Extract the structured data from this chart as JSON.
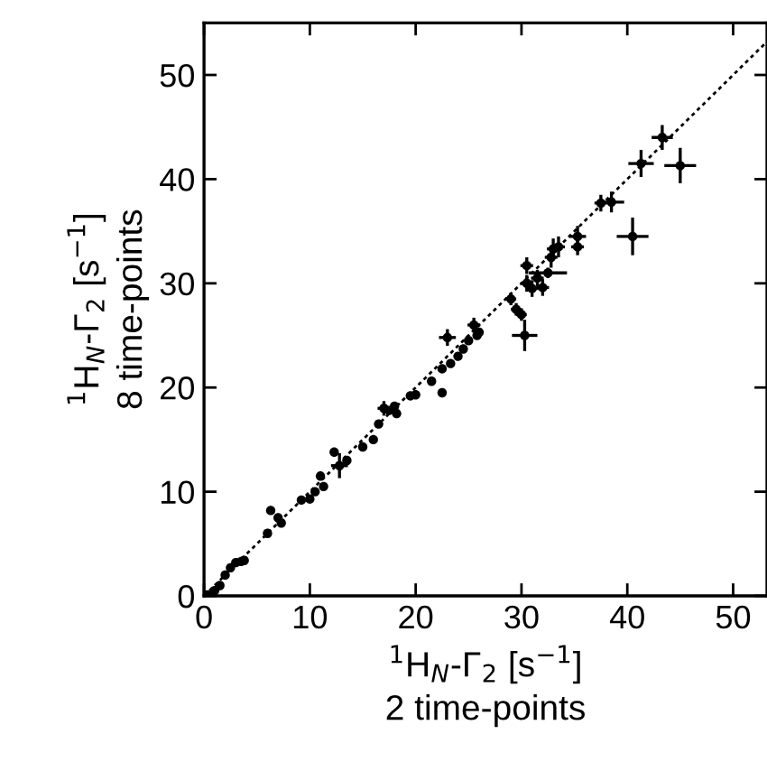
{
  "chart_data": {
    "type": "scatter",
    "xlabel": "$^{1}$H$_{N}$-Γ$_{2}$ [s$^{−1}$]\n2 time-points",
    "ylabel": "$^{1}$H$_{N}$-Γ$_{2}$ [s$^{−1}$]\n8 time-points",
    "xlim": [
      0,
      53.2
    ],
    "ylim": [
      0,
      55
    ],
    "xticks": [
      0,
      10,
      20,
      30,
      40,
      50
    ],
    "yticks": [
      0,
      10,
      20,
      30,
      40,
      50
    ],
    "grid": false,
    "legend": false,
    "series": [
      {
        "color": "#000000",
        "marker": "circle",
        "x": [
          0.3,
          1,
          1.5,
          2,
          2.5,
          3,
          3.5,
          3.8,
          6,
          6.3,
          7,
          7.3,
          9.2,
          10,
          10.5,
          11,
          11.3,
          12.3,
          12.8,
          13.5,
          15,
          16,
          16.5,
          17,
          17.5,
          18,
          18.2,
          19.5,
          20,
          21.5,
          22.5,
          22.5,
          23,
          23.3,
          24,
          24.5,
          25,
          25.5,
          25.8,
          26,
          29,
          29.5,
          30,
          30.3,
          30.5,
          30.5,
          31,
          31.5,
          32,
          32.5,
          32.8,
          33,
          33.5,
          35.3,
          35.3,
          37.5,
          38.5,
          40.5,
          41.3,
          43.3,
          45
        ],
        "values": [
          0.1,
          0.5,
          1,
          2,
          2.7,
          3.2,
          3.3,
          3.4,
          6,
          8.2,
          7.5,
          7,
          9.2,
          9.3,
          10,
          11.5,
          10.5,
          13.8,
          12.5,
          13,
          14.3,
          15,
          16.5,
          18,
          17.8,
          18.2,
          17.5,
          19.2,
          19.3,
          20.6,
          19.5,
          21.8,
          24.8,
          22.3,
          23,
          23.7,
          24.5,
          26,
          25,
          25.3,
          28.5,
          27.5,
          27,
          25,
          31.7,
          30,
          29.5,
          30.5,
          29.6,
          31,
          32.5,
          33.3,
          33.5,
          34.5,
          33.5,
          37.7,
          37.8,
          34.5,
          41.5,
          44,
          41.3
        ],
        "xerrors": [
          null,
          null,
          null,
          null,
          null,
          null,
          null,
          null,
          null,
          null,
          null,
          null,
          null,
          null,
          null,
          null,
          null,
          null,
          0.8,
          null,
          null,
          null,
          null,
          0.6,
          null,
          null,
          null,
          null,
          null,
          null,
          null,
          null,
          0.8,
          null,
          null,
          null,
          null,
          0.6,
          null,
          null,
          0.5,
          0.5,
          0.5,
          1.2,
          0.6,
          0.6,
          0.6,
          0.6,
          0.6,
          1.8,
          0.6,
          0.6,
          0.6,
          0.8,
          0.6,
          0.6,
          1.2,
          1.5,
          1.2,
          1,
          1.5
        ],
        "errors": [
          null,
          null,
          null,
          null,
          null,
          null,
          null,
          null,
          null,
          null,
          null,
          null,
          null,
          null,
          null,
          null,
          null,
          null,
          1.2,
          null,
          null,
          null,
          null,
          0.7,
          null,
          null,
          null,
          null,
          null,
          null,
          null,
          null,
          0.8,
          null,
          null,
          null,
          null,
          0.7,
          null,
          null,
          0.6,
          0.6,
          0.6,
          1.5,
          0.8,
          0.8,
          0.8,
          0.8,
          0.8,
          0.5,
          1,
          1,
          1,
          1,
          0.8,
          0.8,
          1,
          1.8,
          1.3,
          1.2,
          1.7
        ]
      },
      {
        "type": "line",
        "color": "#000000",
        "line_style": "dotted",
        "marker": "none",
        "x": [
          0,
          53.2
        ],
        "values": [
          0,
          53.2
        ]
      }
    ]
  }
}
